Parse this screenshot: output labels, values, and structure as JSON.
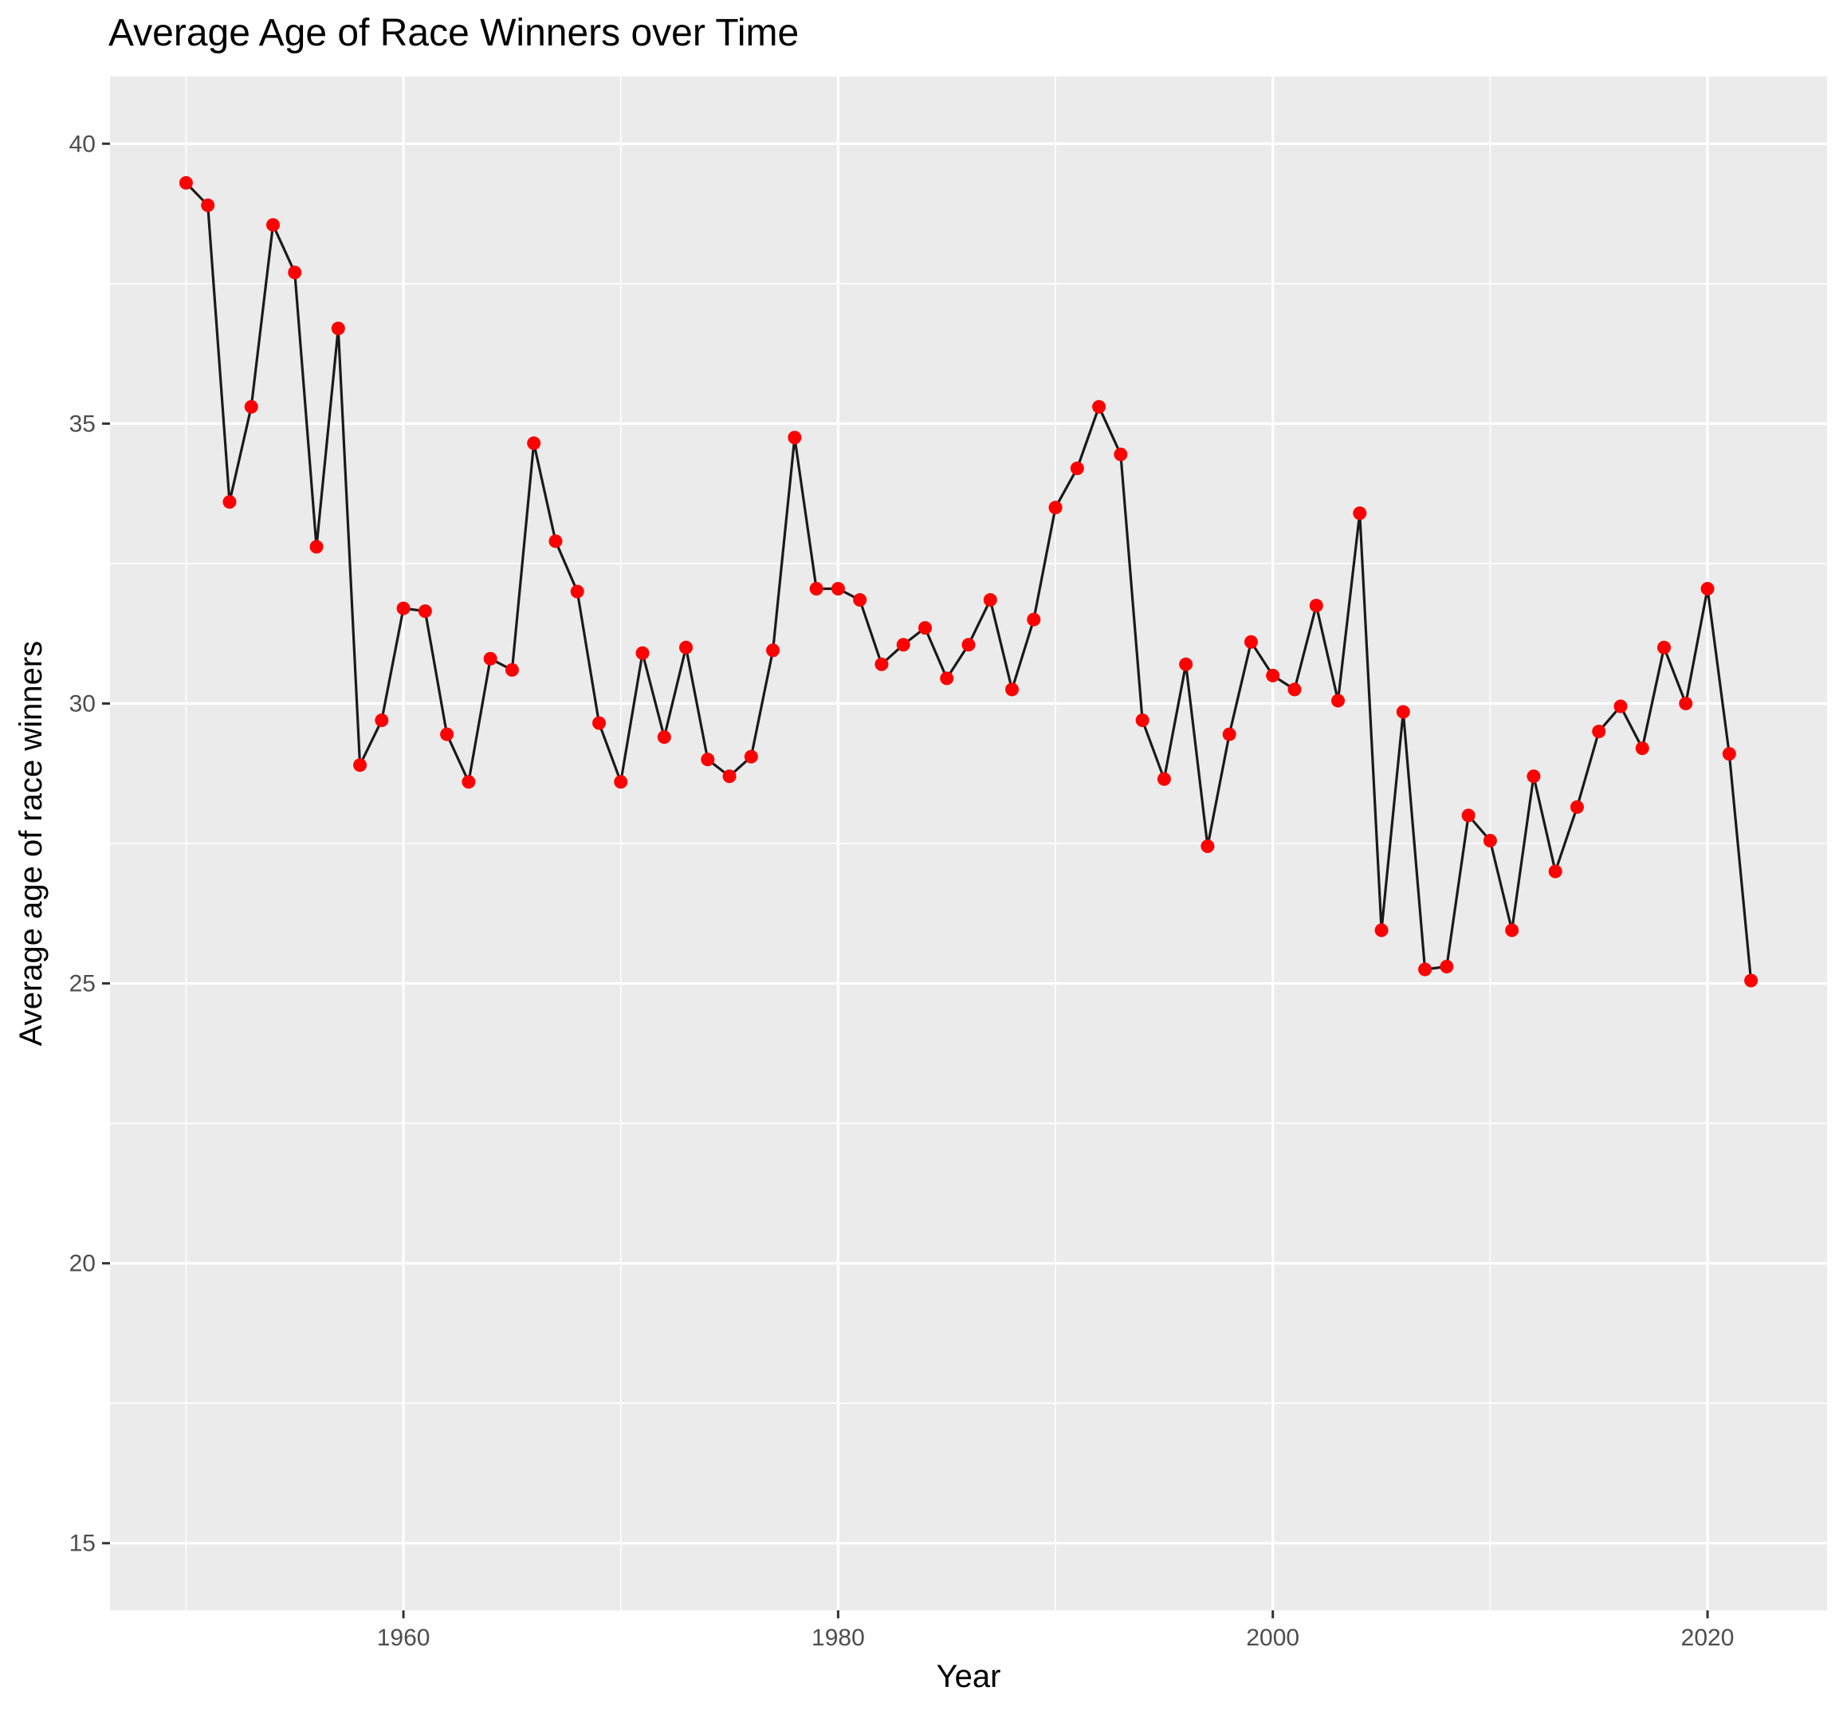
{
  "chart_data": {
    "type": "line",
    "title": "Average Age of Race Winners over Time",
    "xlabel": "Year",
    "ylabel": "Average age of race winners",
    "xlim": [
      1946.5,
      2025.5
    ],
    "ylim": [
      13.8,
      41.2
    ],
    "x_ticks": [
      1960,
      1980,
      2000,
      2020
    ],
    "y_ticks": [
      15,
      20,
      25,
      30,
      35,
      40
    ],
    "grid": true,
    "legend": "none",
    "line_color": "#1a1a1a",
    "point_color": "#ff0000",
    "panel_background": "#ebebeb",
    "series": [
      {
        "x": [
          1950,
          1951,
          1952,
          1953,
          1954,
          1955,
          1956,
          1957,
          1958,
          1959,
          1960,
          1961,
          1962,
          1963,
          1964,
          1965,
          1966,
          1967,
          1968,
          1969,
          1970,
          1971,
          1972,
          1973,
          1974,
          1975,
          1976,
          1977,
          1978,
          1979,
          1980,
          1981,
          1982,
          1983,
          1984,
          1985,
          1986,
          1987,
          1988,
          1989,
          1990,
          1991,
          1992,
          1993,
          1994,
          1995,
          1996,
          1997,
          1998,
          1999,
          2000,
          2001,
          2002,
          2003,
          2004,
          2005,
          2006,
          2007,
          2008,
          2009,
          2010,
          2011,
          2012,
          2013,
          2014,
          2015,
          2016,
          2017,
          2018,
          2019,
          2020,
          2021,
          2022
        ],
        "y": [
          39.3,
          38.9,
          33.6,
          35.3,
          38.55,
          37.7,
          32.8,
          36.7,
          28.9,
          29.7,
          31.7,
          31.65,
          29.45,
          28.6,
          30.8,
          30.6,
          34.65,
          32.9,
          32.0,
          29.65,
          28.6,
          30.9,
          29.4,
          31.0,
          29.0,
          28.7,
          29.05,
          30.95,
          34.75,
          32.05,
          32.05,
          31.85,
          30.7,
          31.05,
          31.35,
          30.45,
          31.05,
          31.85,
          30.25,
          31.5,
          33.5,
          34.2,
          35.3,
          34.45,
          29.7,
          28.65,
          30.7,
          27.45,
          29.45,
          31.1,
          30.5,
          30.25,
          31.75,
          30.05,
          33.4,
          25.95,
          29.85,
          25.25,
          25.3,
          28.0,
          27.55,
          25.95,
          28.7,
          27.0,
          28.15,
          29.5,
          29.95,
          29.2,
          31.0,
          30.0,
          32.05,
          29.1,
          25.05
        ]
      }
    ]
  }
}
